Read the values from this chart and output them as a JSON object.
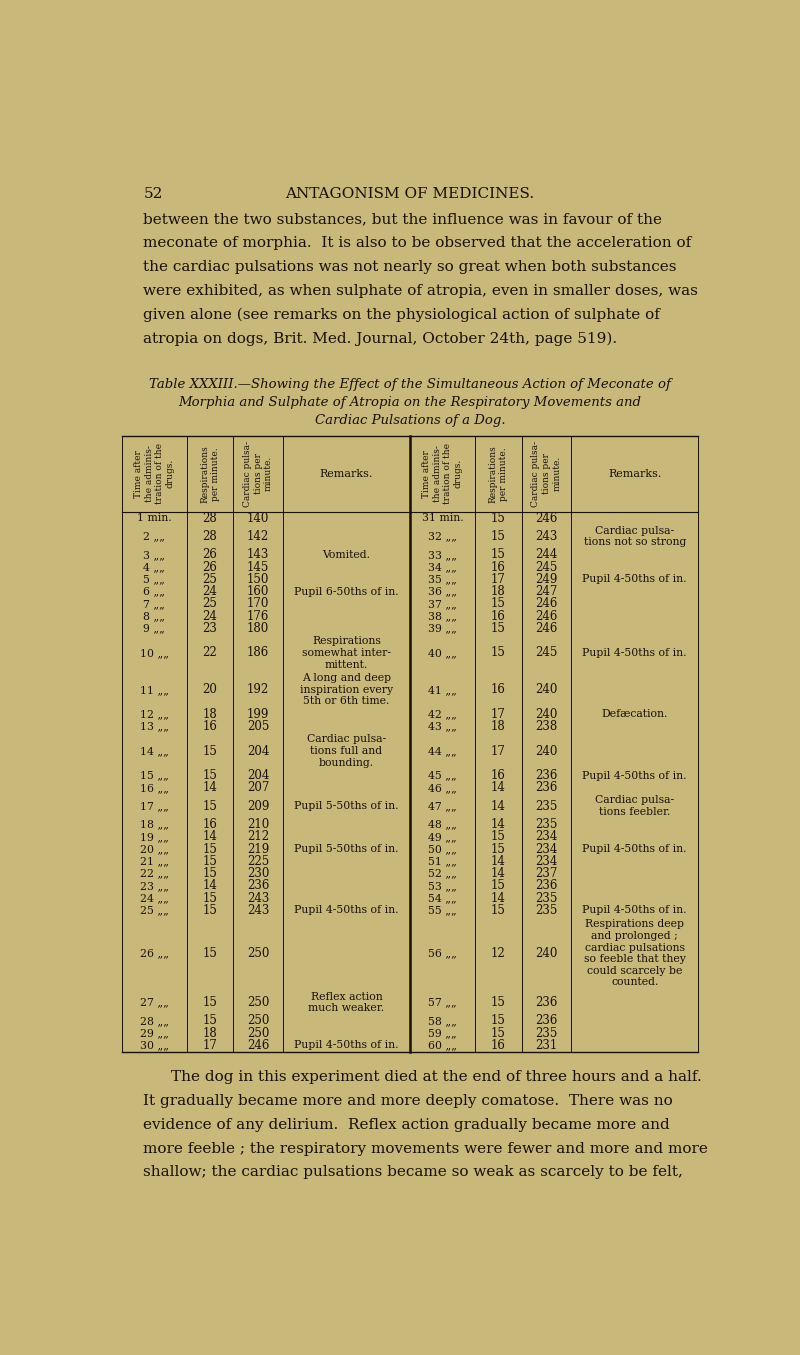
{
  "bg_color": "#c8b87a",
  "text_color": "#1a1008",
  "page_num": "52",
  "page_header": "ANTAGONISM OF MEDICINES.",
  "intro_lines": [
    "between the two substances, but the influence was in favour of the",
    "meconate of morphia.  It is also to be observed that the acceleration of",
    "the cardiac pulsations was not nearly so great when both substances",
    "were exhibited, as when sulphate of atropia, even in smaller doses, was",
    "given alone (see remarks on the physiological action of sulphate of",
    "atropia on dogs, Brit. Med. Journal, October 24th, page 519)."
  ],
  "table_title_line1": "Table XXXIII.—Showing the Effect of the Simultaneous Action of Meconate of",
  "table_title_line2": "Morphia and Sulphate of Atropia on the Respiratory Movements and",
  "table_title_line3": "Cardiac Pulsations of a Dog.",
  "table_data_left": [
    [
      "1 min.",
      28,
      140,
      ""
    ],
    [
      "2 „„",
      28,
      142,
      ""
    ],
    [
      "3 „„",
      26,
      143,
      "Vomited."
    ],
    [
      "4 „„",
      26,
      145,
      ""
    ],
    [
      "5 „„",
      25,
      150,
      ""
    ],
    [
      "6 „„",
      24,
      160,
      "Pupil 6-50ths of in."
    ],
    [
      "7 „„",
      25,
      170,
      ""
    ],
    [
      "8 „„",
      24,
      176,
      ""
    ],
    [
      "9 „„",
      23,
      180,
      ""
    ],
    [
      "10 „„",
      22,
      186,
      "Respirations\nsomewhat inter-\nmittent."
    ],
    [
      "11 „„",
      20,
      192,
      "A long and deep\ninspiration every\n5th or 6th time."
    ],
    [
      "12 „„",
      18,
      199,
      ""
    ],
    [
      "13 „„",
      16,
      205,
      ""
    ],
    [
      "14 „„",
      15,
      204,
      "Cardiac pulsa-\ntions full and\nbounding."
    ],
    [
      "15 „„",
      15,
      204,
      ""
    ],
    [
      "16 „„",
      14,
      207,
      ""
    ],
    [
      "17 „„",
      15,
      209,
      "Pupil 5-50ths of in."
    ],
    [
      "18 „„",
      16,
      210,
      ""
    ],
    [
      "19 „„",
      14,
      212,
      ""
    ],
    [
      "20 „„",
      15,
      219,
      "Pupil 5-50ths of in."
    ],
    [
      "21 „„",
      15,
      225,
      ""
    ],
    [
      "22 „„",
      15,
      230,
      ""
    ],
    [
      "23 „„",
      14,
      236,
      ""
    ],
    [
      "24 „„",
      15,
      243,
      ""
    ],
    [
      "25 „„",
      15,
      243,
      "Pupil 4-50ths of in."
    ],
    [
      "26 „„",
      15,
      250,
      ""
    ],
    [
      "27 „„",
      15,
      250,
      "Reflex action\nmuch weaker."
    ],
    [
      "28 „„",
      15,
      250,
      ""
    ],
    [
      "29 „„",
      18,
      250,
      ""
    ],
    [
      "30 „„",
      17,
      246,
      "Pupil 4-50ths of in."
    ]
  ],
  "table_data_right": [
    [
      "31 min.",
      15,
      246,
      ""
    ],
    [
      "32 „„",
      15,
      243,
      "Cardiac pulsa-\ntions not so strong"
    ],
    [
      "33 „„",
      15,
      244,
      ""
    ],
    [
      "34 „„",
      16,
      245,
      ""
    ],
    [
      "35 „„",
      17,
      249,
      "Pupil 4-50ths of in."
    ],
    [
      "36 „„",
      18,
      247,
      ""
    ],
    [
      "37 „„",
      15,
      246,
      ""
    ],
    [
      "38 „„",
      16,
      246,
      ""
    ],
    [
      "39 „„",
      15,
      246,
      ""
    ],
    [
      "40 „„",
      15,
      245,
      "Pupil 4-50ths of in."
    ],
    [
      "41 „„",
      16,
      240,
      ""
    ],
    [
      "42 „„",
      17,
      240,
      "Defæcation."
    ],
    [
      "43 „„",
      18,
      238,
      ""
    ],
    [
      "44 „„",
      17,
      240,
      ""
    ],
    [
      "45 „„",
      16,
      236,
      "Pupil 4-50ths of in."
    ],
    [
      "46 „„",
      14,
      236,
      ""
    ],
    [
      "47 „„",
      14,
      235,
      "Cardiac pulsa-\ntions feebler."
    ],
    [
      "48 „„",
      14,
      235,
      ""
    ],
    [
      "49 „„",
      15,
      234,
      ""
    ],
    [
      "50 „„",
      15,
      234,
      "Pupil 4-50ths of in."
    ],
    [
      "51 „„",
      14,
      234,
      ""
    ],
    [
      "52 „„",
      14,
      237,
      ""
    ],
    [
      "53 „„",
      15,
      236,
      ""
    ],
    [
      "54 „„",
      14,
      235,
      ""
    ],
    [
      "55 „„",
      15,
      235,
      "Pupil 4-50ths of in."
    ],
    [
      "56 „„",
      12,
      240,
      "Respirations deep\nand prolonged ;\ncardiac pulsations\nso feeble that they\ncould scarcely be\ncounted."
    ],
    [
      "57 „„",
      15,
      236,
      ""
    ],
    [
      "58 „„",
      15,
      236,
      ""
    ],
    [
      "59 „„",
      15,
      235,
      ""
    ],
    [
      "60 „„",
      16,
      231,
      ""
    ]
  ],
  "footer_text": [
    "The dog in this experiment died at the end of three hours and a half.",
    "It gradually became more and more deeply comatose.  There was no",
    "evidence of any delirium.  Reflex action gradually became more and",
    "more feeble ; the respiratory movements were fewer and more and more",
    "shallow; the cardiac pulsations became so weak as scarcely to be felt,"
  ]
}
